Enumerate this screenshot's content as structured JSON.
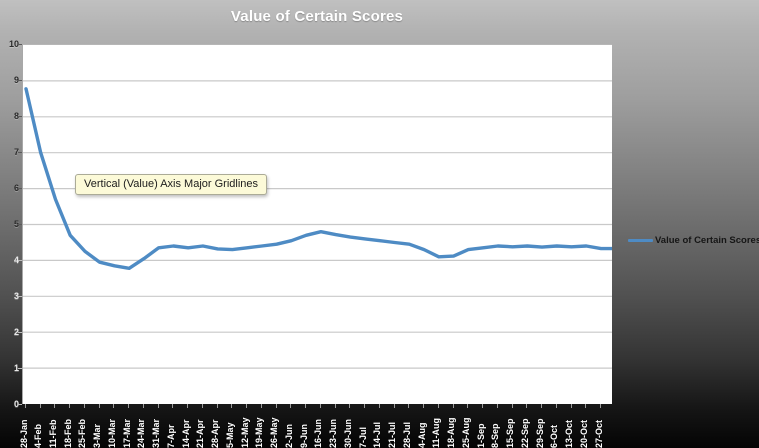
{
  "title": "Value of Certain Scores",
  "tooltip": {
    "text": "Vertical (Value) Axis Major Gridlines"
  },
  "legend": {
    "label": "Value of Certain Scores"
  },
  "colors": {
    "series": "#4e8bc4",
    "gridline": "#c9c9c9",
    "plot_bg": "#ffffff",
    "title_text": "#ffffff",
    "x_label_text": "#ffffff",
    "y_label_dark": "#2b2b2b",
    "y_label_light": "#e9e9e9",
    "tooltip_bg": "#fcfad8"
  },
  "chart_data": {
    "type": "line",
    "title": "Value of Certain Scores",
    "xlabel": "",
    "ylabel": "",
    "ylim": [
      0,
      10
    ],
    "y_ticks": [
      0,
      1,
      2,
      3,
      4,
      5,
      6,
      7,
      8,
      9,
      10
    ],
    "grid": true,
    "legend_position": "right",
    "categories": [
      "28-Jan",
      "4-Feb",
      "11-Feb",
      "18-Feb",
      "25-Feb",
      "3-Mar",
      "10-Mar",
      "17-Mar",
      "24-Mar",
      "31-Mar",
      "7-Apr",
      "14-Apr",
      "21-Apr",
      "28-Apr",
      "5-May",
      "12-May",
      "19-May",
      "26-May",
      "2-Jun",
      "9-Jun",
      "16-Jun",
      "23-Jun",
      "30-Jun",
      "7-Jul",
      "14-Jul",
      "21-Jul",
      "28-Jul",
      "4-Aug",
      "11-Aug",
      "18-Aug",
      "25-Aug",
      "1-Sep",
      "8-Sep",
      "15-Sep",
      "22-Sep",
      "29-Sep",
      "6-Oct",
      "13-Oct",
      "20-Oct",
      "27-Oct"
    ],
    "series": [
      {
        "name": "Value of Certain Scores",
        "values": [
          8.78,
          7.0,
          5.7,
          4.7,
          4.25,
          3.95,
          3.85,
          3.78,
          4.05,
          4.35,
          4.4,
          4.35,
          4.4,
          4.32,
          4.3,
          4.35,
          4.4,
          4.45,
          4.55,
          4.7,
          4.8,
          4.72,
          4.65,
          4.6,
          4.55,
          4.5,
          4.45,
          4.3,
          4.1,
          4.12,
          4.3,
          4.35,
          4.4,
          4.38,
          4.4,
          4.37,
          4.4,
          4.38,
          4.4,
          4.33
        ]
      }
    ]
  }
}
